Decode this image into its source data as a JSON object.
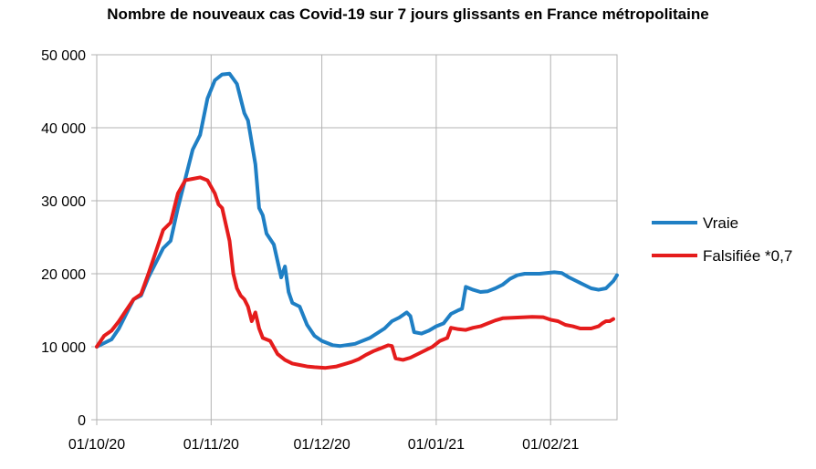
{
  "chart_data": {
    "type": "line",
    "title": "Nombre de nouveaux cas Covid-19 sur 7 jours glissants en France métropolitaine",
    "xlabel": "",
    "ylabel": "",
    "ylim": [
      0,
      50000
    ],
    "yticks": [
      0,
      10000,
      20000,
      30000,
      40000,
      50000
    ],
    "ytick_labels": [
      "0",
      "10 000",
      "20 000",
      "30 000",
      "40 000",
      "50 000"
    ],
    "x_start": "01/10/20",
    "x_end_days": 141,
    "xticks": [
      0,
      31,
      61,
      92,
      123
    ],
    "xtick_labels": [
      "01/10/20",
      "01/11/20",
      "01/12/20",
      "01/01/21",
      "01/02/21"
    ],
    "grid": true,
    "legend_position": "right",
    "series": [
      {
        "name": "Vraie",
        "color": "#1f7fc4",
        "points": [
          [
            0,
            10000
          ],
          [
            4,
            11000
          ],
          [
            6,
            12500
          ],
          [
            8,
            14500
          ],
          [
            10,
            16500
          ],
          [
            12,
            17000
          ],
          [
            14,
            19500
          ],
          [
            16,
            21500
          ],
          [
            18,
            23500
          ],
          [
            20,
            24500
          ],
          [
            22,
            29000
          ],
          [
            24,
            33000
          ],
          [
            26,
            37000
          ],
          [
            28,
            39000
          ],
          [
            30,
            44000
          ],
          [
            32,
            46500
          ],
          [
            34,
            47300
          ],
          [
            36,
            47400
          ],
          [
            38,
            46000
          ],
          [
            40,
            42000
          ],
          [
            41,
            41000
          ],
          [
            43,
            35000
          ],
          [
            44,
            29000
          ],
          [
            45,
            28000
          ],
          [
            46,
            25500
          ],
          [
            48,
            24000
          ],
          [
            50,
            19500
          ],
          [
            51,
            21000
          ],
          [
            52,
            17500
          ],
          [
            53,
            16000
          ],
          [
            55,
            15500
          ],
          [
            57,
            13000
          ],
          [
            59,
            11500
          ],
          [
            61,
            10800
          ],
          [
            64,
            10200
          ],
          [
            66,
            10100
          ],
          [
            70,
            10400
          ],
          [
            74,
            11200
          ],
          [
            78,
            12500
          ],
          [
            80,
            13500
          ],
          [
            82,
            14000
          ],
          [
            84,
            14700
          ],
          [
            85,
            14200
          ],
          [
            86,
            12000
          ],
          [
            88,
            11800
          ],
          [
            90,
            12200
          ],
          [
            92,
            12800
          ],
          [
            94,
            13200
          ],
          [
            96,
            14500
          ],
          [
            98,
            15000
          ],
          [
            99,
            15200
          ],
          [
            100,
            18200
          ],
          [
            102,
            17800
          ],
          [
            104,
            17500
          ],
          [
            106,
            17600
          ],
          [
            108,
            18000
          ],
          [
            110,
            18500
          ],
          [
            112,
            19300
          ],
          [
            114,
            19800
          ],
          [
            116,
            20000
          ],
          [
            120,
            20000
          ],
          [
            124,
            20200
          ],
          [
            126,
            20100
          ],
          [
            128,
            19500
          ],
          [
            130,
            19000
          ],
          [
            132,
            18500
          ],
          [
            134,
            18000
          ],
          [
            136,
            17800
          ],
          [
            138,
            18000
          ],
          [
            139,
            18500
          ],
          [
            140,
            19000
          ],
          [
            141,
            19800
          ]
        ]
      },
      {
        "name": "Falsifiée *0,7",
        "color": "#e51c1c",
        "points": [
          [
            0,
            10000
          ],
          [
            2,
            11500
          ],
          [
            4,
            12200
          ],
          [
            6,
            13500
          ],
          [
            8,
            15000
          ],
          [
            10,
            16500
          ],
          [
            12,
            17200
          ],
          [
            14,
            20000
          ],
          [
            16,
            23000
          ],
          [
            18,
            26000
          ],
          [
            20,
            27000
          ],
          [
            22,
            31000
          ],
          [
            24,
            32800
          ],
          [
            26,
            33000
          ],
          [
            28,
            33200
          ],
          [
            30,
            32800
          ],
          [
            32,
            31000
          ],
          [
            33,
            29500
          ],
          [
            34,
            29000
          ],
          [
            36,
            24500
          ],
          [
            37,
            20000
          ],
          [
            38,
            18000
          ],
          [
            39,
            17000
          ],
          [
            40,
            16500
          ],
          [
            41,
            15500
          ],
          [
            42,
            13500
          ],
          [
            43,
            14700
          ],
          [
            44,
            12500
          ],
          [
            45,
            11200
          ],
          [
            47,
            10800
          ],
          [
            49,
            9000
          ],
          [
            51,
            8200
          ],
          [
            53,
            7700
          ],
          [
            55,
            7500
          ],
          [
            57,
            7300
          ],
          [
            59,
            7200
          ],
          [
            62,
            7100
          ],
          [
            65,
            7300
          ],
          [
            67,
            7600
          ],
          [
            69,
            7900
          ],
          [
            71,
            8300
          ],
          [
            73,
            8900
          ],
          [
            75,
            9400
          ],
          [
            77,
            9800
          ],
          [
            79,
            10200
          ],
          [
            80,
            10100
          ],
          [
            81,
            8400
          ],
          [
            83,
            8200
          ],
          [
            85,
            8500
          ],
          [
            87,
            9000
          ],
          [
            89,
            9500
          ],
          [
            91,
            10000
          ],
          [
            93,
            10800
          ],
          [
            95,
            11200
          ],
          [
            96,
            12600
          ],
          [
            98,
            12400
          ],
          [
            100,
            12300
          ],
          [
            102,
            12600
          ],
          [
            104,
            12800
          ],
          [
            106,
            13200
          ],
          [
            108,
            13600
          ],
          [
            110,
            13900
          ],
          [
            114,
            14000
          ],
          [
            118,
            14100
          ],
          [
            121,
            14050
          ],
          [
            123,
            13700
          ],
          [
            125,
            13500
          ],
          [
            127,
            13000
          ],
          [
            129,
            12800
          ],
          [
            131,
            12500
          ],
          [
            134,
            12500
          ],
          [
            136,
            12800
          ],
          [
            137,
            13200
          ],
          [
            138,
            13500
          ],
          [
            139,
            13500
          ],
          [
            140,
            13800
          ]
        ]
      }
    ]
  }
}
